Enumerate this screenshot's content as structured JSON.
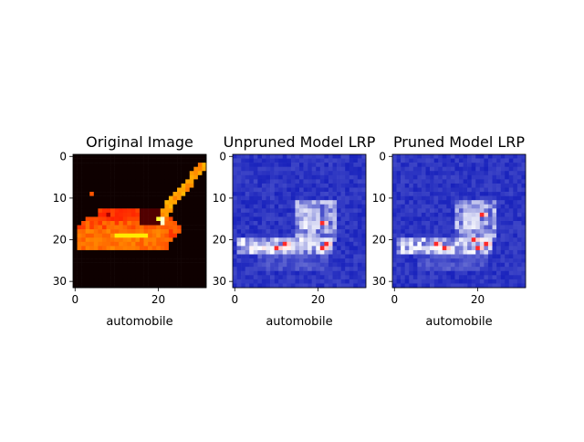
{
  "chart_data": [
    {
      "type": "heatmap",
      "title": "Original Image",
      "xlabel": "automobile",
      "ylabel": "",
      "xlim": [
        -0.5,
        31.5
      ],
      "ylim": [
        31.5,
        -0.5
      ],
      "xticks": [
        0,
        20
      ],
      "yticks": [
        0,
        10,
        20,
        30
      ],
      "colormap": "hot",
      "background": "#000000",
      "shapes": [
        {
          "kind": "car-body",
          "value": 0.55
        },
        {
          "kind": "windshield-pole",
          "value": 0.6
        },
        {
          "kind": "headlight",
          "value": 0.95
        }
      ]
    },
    {
      "type": "heatmap",
      "title": "Unpruned Model LRP",
      "xlabel": "automobile",
      "ylabel": "",
      "xlim": [
        -0.5,
        31.5
      ],
      "ylim": [
        31.5,
        -0.5
      ],
      "xticks": [
        0,
        20
      ],
      "yticks": [
        0,
        10,
        20,
        30
      ],
      "colormap": "seismic",
      "background": "#0a14b8",
      "hotspots": [
        [
          21,
          16
        ],
        [
          22,
          21
        ],
        [
          21,
          22
        ],
        [
          12,
          21
        ],
        [
          10,
          22
        ]
      ]
    },
    {
      "type": "heatmap",
      "title": "Pruned Model LRP",
      "xlabel": "automobile",
      "ylabel": "",
      "xlim": [
        -0.5,
        31.5
      ],
      "ylim": [
        31.5,
        -0.5
      ],
      "xticks": [
        0,
        20
      ],
      "yticks": [
        0,
        10,
        20,
        30
      ],
      "colormap": "seismic",
      "background": "#0a14b8",
      "hotspots": [
        [
          21,
          14
        ],
        [
          19,
          20
        ],
        [
          20,
          22
        ],
        [
          22,
          21
        ],
        [
          12,
          22
        ],
        [
          10,
          21
        ]
      ]
    }
  ]
}
